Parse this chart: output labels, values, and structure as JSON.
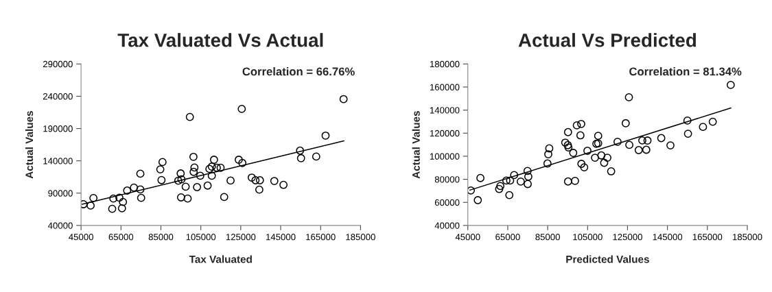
{
  "chart_data": [
    {
      "type": "scatter",
      "title": "Tax Valuated Vs Actual",
      "xlabel": "Tax Valuated",
      "ylabel": "Actual Values",
      "annotations": [
        "Correlation = 66.76%"
      ],
      "xlim": [
        45000,
        185000
      ],
      "xticks": [
        45000,
        65000,
        85000,
        105000,
        125000,
        145000,
        165000,
        185000
      ],
      "ylim": [
        40000,
        290000
      ],
      "yticks": [
        40000,
        90000,
        140000,
        190000,
        240000,
        290000
      ],
      "grid": false,
      "series": [
        {
          "marker": "circle",
          "color": "#000000",
          "x": [
            46200,
            49800,
            51200,
            60600,
            61200,
            64200,
            66000,
            65500,
            68100,
            71500,
            74700,
            74700,
            75100,
            84700,
            85800,
            85300,
            93700,
            94900,
            95300,
            95100,
            98400,
            97400,
            99500,
            101300,
            101800,
            101400,
            103100,
            104700,
            108400,
            109300,
            110500,
            110500,
            111600,
            113000,
            114900,
            116700,
            119900,
            124000,
            125500,
            125800,
            130500,
            132400,
            134600,
            134300,
            141800,
            146400,
            154700,
            155200,
            162800,
            167500,
            176500
          ],
          "values": [
            72800,
            70700,
            82400,
            65700,
            81600,
            83000,
            76300,
            66500,
            94000,
            98600,
            120100,
            95700,
            82700,
            126800,
            138100,
            110200,
            109200,
            120500,
            111300,
            83400,
            81600,
            100000,
            208000,
            146200,
            129600,
            122900,
            99300,
            116900,
            101700,
            127500,
            131100,
            116900,
            141700,
            129300,
            129300,
            84100,
            109500,
            141700,
            220400,
            136700,
            114100,
            109900,
            109900,
            95400,
            108800,
            102800,
            155800,
            144100,
            146600,
            179100,
            235600
          ]
        },
        {
          "type": "line",
          "marker": "none",
          "color": "#000000",
          "x": [
            45500,
            176700
          ],
          "values": [
            72800,
            170900
          ]
        }
      ]
    },
    {
      "type": "scatter",
      "title": "Actual Vs Predicted",
      "xlabel": "Predicted Values",
      "ylabel": "Actual Values",
      "annotations": [
        "Correlation = 81.34%"
      ],
      "xlim": [
        45000,
        185000
      ],
      "xticks": [
        45000,
        65000,
        85000,
        105000,
        125000,
        145000,
        165000,
        185000
      ],
      "ylim": [
        40000,
        180000
      ],
      "yticks": [
        40000,
        60000,
        80000,
        100000,
        120000,
        140000,
        160000,
        180000
      ],
      "grid": false,
      "series": [
        {
          "marker": "circle",
          "color": "#000000",
          "x": [
            46500,
            50000,
            51300,
            60700,
            61300,
            64300,
            66200,
            65800,
            68200,
            71500,
            74900,
            75300,
            75000,
            84900,
            85300,
            85800,
            93800,
            95200,
            95100,
            95400,
            95200,
            97800,
            98700,
            99600,
            101800,
            101400,
            101900,
            103300,
            104900,
            108700,
            109400,
            110300,
            110300,
            111900,
            113300,
            114900,
            116800,
            120000,
            124100,
            125700,
            125900,
            130600,
            132400,
            135000,
            134400,
            141900,
            146500,
            155000,
            155300,
            162800,
            167700,
            176700
          ],
          "values": [
            70300,
            61900,
            81100,
            71600,
            74200,
            78900,
            78900,
            66300,
            83700,
            78000,
            87200,
            82300,
            75900,
            93700,
            101700,
            106800,
            111800,
            120900,
            109600,
            107600,
            78100,
            102900,
            78600,
            126800,
            128000,
            118100,
            93400,
            90400,
            104700,
            98700,
            110800,
            117700,
            111200,
            100700,
            94300,
            98700,
            86900,
            112500,
            128600,
            151100,
            109800,
            105300,
            113700,
            113600,
            105600,
            115700,
            109400,
            130900,
            119500,
            125400,
            129900,
            161800
          ]
        },
        {
          "type": "line",
          "marker": "none",
          "color": "#000000",
          "x": [
            46000,
            176800
          ],
          "values": [
            70600,
            141800
          ]
        }
      ]
    }
  ]
}
